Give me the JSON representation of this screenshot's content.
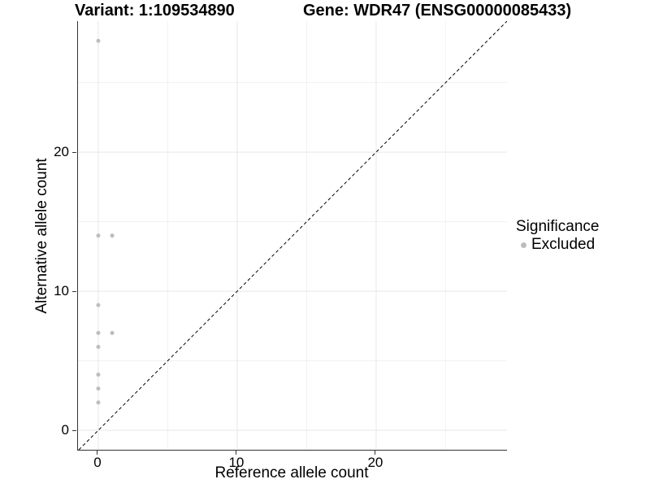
{
  "chart_data": {
    "type": "scatter",
    "title_left": "Variant: 1:109534890",
    "title_right": "Gene: WDR47 (ENSG00000085433)",
    "xlabel": "Reference allele count",
    "ylabel": "Alternative allele count",
    "xlim": [
      -1.46,
      29.42
    ],
    "ylim": [
      -1.4,
      29.42
    ],
    "xticks": [
      0,
      10,
      20
    ],
    "xtick_labels": [
      "0",
      "10",
      "20"
    ],
    "yticks": [
      0,
      10,
      20
    ],
    "ytick_labels": [
      "0",
      "10",
      "20"
    ],
    "minor_xticks": [
      5,
      15,
      25
    ],
    "minor_yticks": [
      5,
      15,
      25
    ],
    "grid": "major+minor",
    "reference_line": {
      "kind": "identity",
      "slope": 1,
      "intercept": 0,
      "linetype": "dashed",
      "color": "#000000"
    },
    "series": [
      {
        "name": "Excluded",
        "color": "#bdbdbd",
        "points": [
          {
            "x": 0,
            "y": 28
          },
          {
            "x": 0,
            "y": 14
          },
          {
            "x": 1,
            "y": 14
          },
          {
            "x": 0,
            "y": 9
          },
          {
            "x": 0,
            "y": 7
          },
          {
            "x": 1,
            "y": 7
          },
          {
            "x": 0,
            "y": 6
          },
          {
            "x": 0,
            "y": 4
          },
          {
            "x": 0,
            "y": 3
          },
          {
            "x": 0,
            "y": 2
          }
        ]
      }
    ],
    "legend": {
      "title": "Significance",
      "position": "right",
      "items": [
        {
          "label": "Excluded",
          "color": "#bdbdbd"
        }
      ]
    }
  },
  "colors": {
    "background": "#ffffff",
    "axis_line": "#333333",
    "grid_major": "#e7e7e7",
    "grid_minor": "#f1f1f1",
    "text": "#000000",
    "point": "#bdbdbd"
  }
}
